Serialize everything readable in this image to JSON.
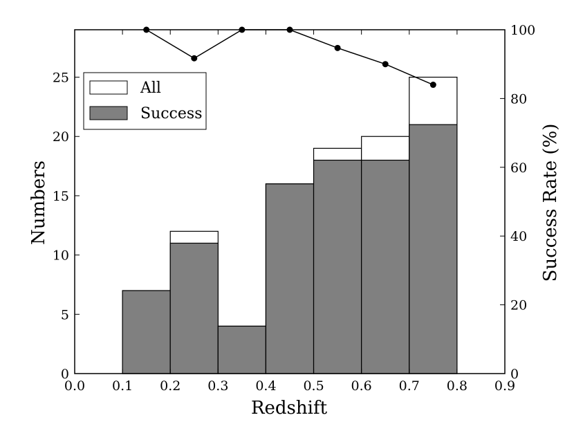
{
  "chart_data": {
    "type": "bar",
    "xlabel": "Redshift",
    "ylabel": "Numbers",
    "y2label": "Success Rate (%)",
    "xlim": [
      0.0,
      0.9
    ],
    "ylim": [
      0,
      29
    ],
    "y2lim": [
      0,
      100
    ],
    "xticks": [
      "0.0",
      "0.1",
      "0.2",
      "0.3",
      "0.4",
      "0.5",
      "0.6",
      "0.7",
      "0.8",
      "0.9"
    ],
    "yticks": [
      "0",
      "5",
      "10",
      "15",
      "20",
      "25"
    ],
    "y2ticks": [
      "0",
      "20",
      "40",
      "60",
      "80",
      "100"
    ],
    "bins": [
      [
        0.1,
        0.2
      ],
      [
        0.2,
        0.3
      ],
      [
        0.3,
        0.4
      ],
      [
        0.4,
        0.5
      ],
      [
        0.5,
        0.6
      ],
      [
        0.6,
        0.7
      ],
      [
        0.7,
        0.8
      ]
    ],
    "series": [
      {
        "name": "All",
        "type": "bar",
        "color": "#ffffff",
        "values": [
          7,
          12,
          4,
          16,
          19,
          20,
          25
        ]
      },
      {
        "name": "Success",
        "type": "bar",
        "color": "#808080",
        "values": [
          7,
          11,
          4,
          16,
          18,
          18,
          21
        ]
      },
      {
        "type": "line",
        "axis": "right",
        "color": "#000000",
        "x": [
          0.15,
          0.25,
          0.35,
          0.45,
          0.55,
          0.65,
          0.75
        ],
        "values": [
          100,
          91.7,
          100,
          100,
          94.7,
          90,
          84
        ]
      }
    ],
    "legend": {
      "placement": "upper-left",
      "entries": [
        "All",
        "Success"
      ]
    },
    "grid": false
  }
}
